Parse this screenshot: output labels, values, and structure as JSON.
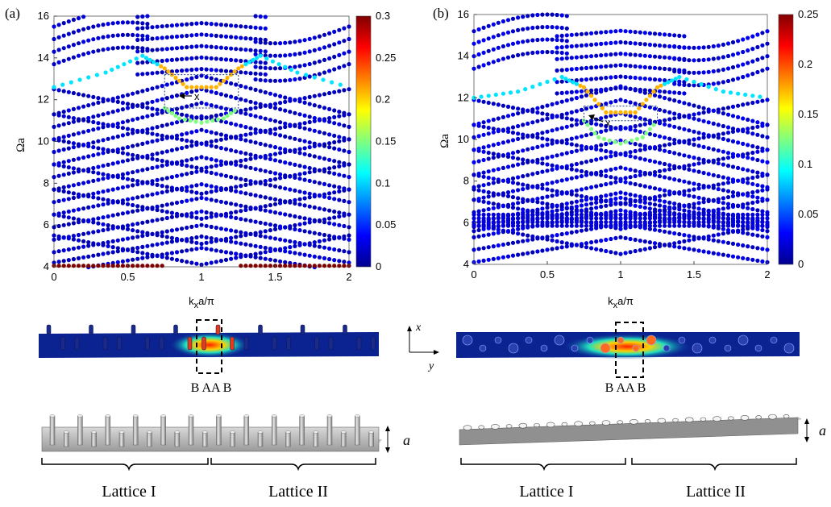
{
  "panels": [
    {
      "label": "(a)",
      "xlabel_main": "k",
      "xlabel_sub": "x",
      "xlabel_rest": "a/π",
      "ylabel": "Ωa",
      "xlim": [
        0,
        2
      ],
      "ylim": [
        4,
        16
      ],
      "xticks": [
        "0",
        "0.5",
        "1",
        "1.5",
        "2"
      ],
      "yticks": [
        "4",
        "6",
        "8",
        "10",
        "12",
        "14",
        "16"
      ],
      "colorbar_max": 0.3,
      "colorbar_ticks": [
        "0",
        "0.05",
        "0.1",
        "0.15",
        "0.2",
        "0.25",
        "0.3"
      ],
      "marker_label": "x",
      "box": {
        "x": [
          0.75,
          1.25
        ],
        "y": [
          11.6,
          13.2
        ]
      },
      "mode_labels": "B AA B",
      "lattice_labels": [
        "Lattice I",
        "Lattice II"
      ],
      "height_label": "a"
    },
    {
      "label": "(b)",
      "xlabel_main": "k",
      "xlabel_sub": "x",
      "xlabel_rest": "a/π",
      "ylabel": "Ωa",
      "xlim": [
        0,
        2
      ],
      "ylim": [
        4,
        16
      ],
      "xticks": [
        "0",
        "0.5",
        "1",
        "1.5",
        "2"
      ],
      "yticks": [
        "4",
        "6",
        "8",
        "10",
        "12",
        "14",
        "16"
      ],
      "colorbar_max": 0.25,
      "colorbar_ticks": [
        "0",
        "0.05",
        "0.1",
        "0.15",
        "0.2",
        "0.25"
      ],
      "marker_label": "x",
      "box": {
        "x": [
          0.75,
          1.25
        ],
        "y": [
          10.9,
          11.6
        ]
      },
      "mode_labels": "B AA B",
      "lattice_labels": [
        "Lattice I",
        "Lattice II"
      ],
      "height_label": "a"
    }
  ],
  "axes_indicator": {
    "x": "x",
    "y": "y"
  },
  "chart_data": [
    {
      "type": "scatter",
      "title": "",
      "xlabel": "kxa/π",
      "ylabel": "Ωa",
      "xlim": [
        0,
        2
      ],
      "ylim": [
        4,
        16
      ],
      "colorbar_range": [
        0,
        0.3
      ],
      "series": [
        {
          "bands": [
            4.1,
            4.6,
            5.1,
            5.7,
            6.3,
            6.9,
            7.5,
            8.1,
            8.7,
            9.3,
            9.9,
            10.5,
            11.1,
            11.7
          ],
          "color_value": 0.02
        },
        {
          "edge_mode_upper": {
            "x": [
              0.0,
              0.35,
              0.6,
              0.75,
              0.9,
              1.1,
              1.25,
              1.4,
              1.65,
              2.0
            ],
            "y": [
              12.6,
              13.3,
              14.1,
              13.5,
              12.6,
              12.6,
              13.5,
              14.1,
              13.3,
              12.6
            ]
          }
        },
        {
          "edge_mode_lower": {
            "x": [
              0.75,
              0.85,
              1.0,
              1.15,
              1.25
            ],
            "y": [
              11.6,
              11.1,
              10.9,
              11.1,
              11.6
            ]
          }
        },
        {
          "bottom_mode": {
            "y": 4.05,
            "color_value": 0.3
          }
        }
      ]
    },
    {
      "type": "scatter",
      "title": "",
      "xlabel": "kxa/π",
      "ylabel": "Ωa",
      "xlim": [
        0,
        2
      ],
      "ylim": [
        4,
        16
      ],
      "colorbar_range": [
        0,
        0.25
      ],
      "series": [
        {
          "bands": [
            4.5,
            5.1,
            5.7,
            6.0,
            6.2,
            6.4,
            6.9,
            7.5,
            8.1,
            8.7,
            9.3,
            9.9,
            10.5,
            11.1
          ],
          "color_value": 0.02
        },
        {
          "edge_mode_upper": {
            "x": [
              0.0,
              0.3,
              0.6,
              0.75,
              0.9,
              1.1,
              1.25,
              1.4,
              1.7,
              2.0
            ],
            "y": [
              12.0,
              12.3,
              13.0,
              12.5,
              11.3,
              11.3,
              12.5,
              13.0,
              12.3,
              12.0
            ]
          }
        },
        {
          "edge_mode_lower": {
            "x": [
              0.75,
              0.85,
              1.0,
              1.15,
              1.25
            ],
            "y": [
              10.9,
              10.1,
              9.8,
              10.1,
              10.9
            ]
          }
        }
      ]
    }
  ]
}
